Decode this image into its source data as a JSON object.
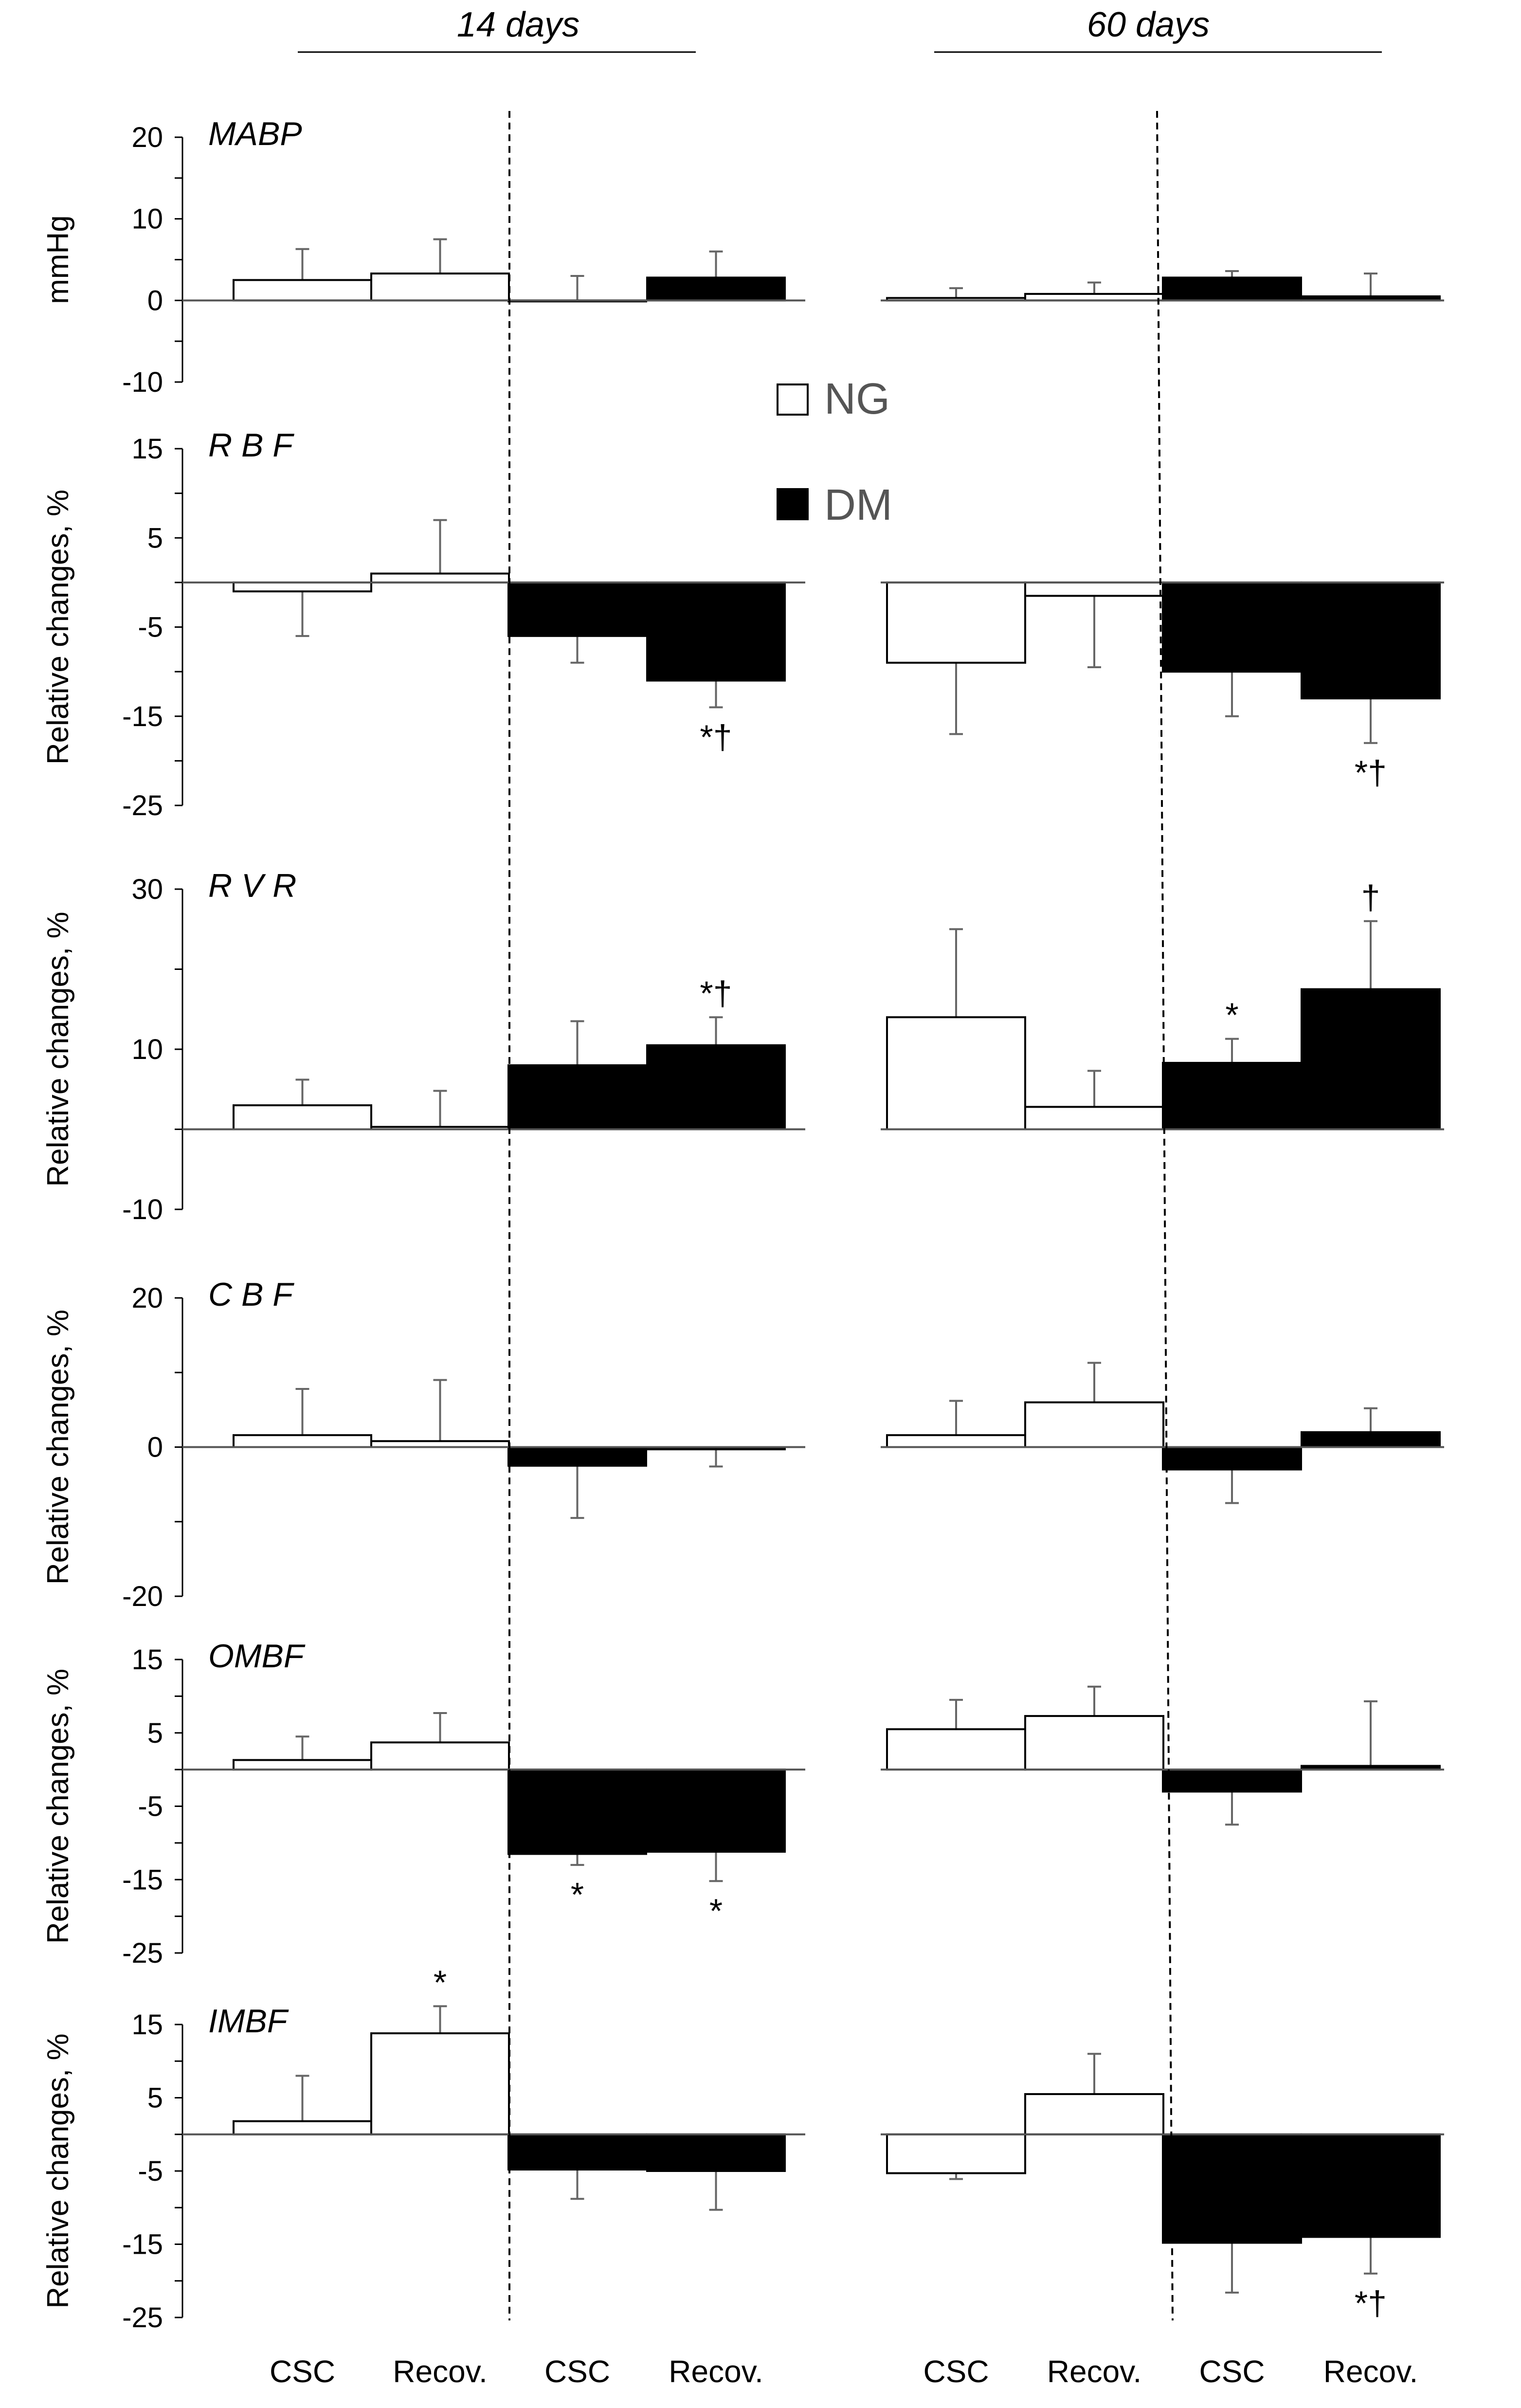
{
  "chart_data": {
    "type": "bar",
    "groups": [
      "14 days",
      "60 days"
    ],
    "categories": [
      "CSC",
      "Recov.",
      "CSC",
      "Recov."
    ],
    "legend": [
      {
        "name": "NG",
        "color": "#ffffff"
      },
      {
        "name": "DM",
        "color": "#000000"
      }
    ],
    "panels": [
      {
        "title": "MABP",
        "ylabel": "mmHg",
        "ylim": [
          -10,
          20
        ],
        "yticks": [
          20,
          10,
          0,
          -10
        ],
        "groups": [
          {
            "NG": [
              2.5,
              3.3
            ],
            "NG_err": [
              3.8,
              4.2
            ],
            "DM": [
              0,
              2.8
            ],
            "DM_err": [
              3.0,
              3.2
            ]
          },
          {
            "NG": [
              0.3,
              0.8
            ],
            "NG_err": [
              1.2,
              1.4
            ],
            "DM": [
              2.8,
              0.5
            ],
            "DM_err": [
              0.8,
              2.8
            ]
          }
        ],
        "annotations": []
      },
      {
        "title": "R B F",
        "ylabel": "Relative changes, %",
        "ylim": [
          -25,
          15
        ],
        "yticks": [
          15,
          5,
          -5,
          -15,
          -25
        ],
        "groups": [
          {
            "NG": [
              -1,
              1
            ],
            "NG_err": [
              5,
              6
            ],
            "DM": [
              -6,
              -11
            ],
            "DM_err": [
              3,
              3
            ]
          },
          {
            "NG": [
              -9,
              -1.5
            ],
            "NG_err": [
              8,
              8
            ],
            "DM": [
              -10,
              -13
            ],
            "DM_err": [
              5,
              5
            ]
          }
        ],
        "annotations": [
          {
            "group": 0,
            "index": 3,
            "text": "*†",
            "position": "below"
          },
          {
            "group": 1,
            "index": 3,
            "text": "*†",
            "position": "below"
          }
        ]
      },
      {
        "title": "R V R",
        "ylabel": "Relative changes, %",
        "ylim": [
          -10,
          30
        ],
        "yticks": [
          30,
          10,
          -10
        ],
        "groups": [
          {
            "NG": [
              3,
              0.3
            ],
            "NG_err": [
              3.2,
              4.5
            ],
            "DM": [
              8,
              10.5
            ],
            "DM_err": [
              5.5,
              3.5
            ]
          },
          {
            "NG": [
              14,
              2.8
            ],
            "NG_err": [
              11,
              4.5
            ],
            "DM": [
              8.3,
              17.5
            ],
            "DM_err": [
              3,
              8.5
            ]
          }
        ],
        "annotations": [
          {
            "group": 0,
            "index": 3,
            "text": "*†",
            "position": "above"
          },
          {
            "group": 1,
            "index": 2,
            "text": "*",
            "position": "above"
          },
          {
            "group": 1,
            "index": 3,
            "text": "†",
            "position": "above"
          }
        ]
      },
      {
        "title": "C B F",
        "ylabel": "Relative changes, %",
        "ylim": [
          -20,
          20
        ],
        "yticks": [
          20,
          0,
          -20
        ],
        "groups": [
          {
            "NG": [
              1.6,
              0.8
            ],
            "NG_err": [
              6.2,
              8.2
            ],
            "DM": [
              -2.5,
              -0.3
            ],
            "DM_err": [
              7,
              2.3
            ]
          },
          {
            "NG": [
              1.6,
              6
            ],
            "NG_err": [
              4.6,
              5.3
            ],
            "DM": [
              -3,
              2
            ],
            "DM_err": [
              4.5,
              3.2
            ]
          }
        ],
        "annotations": []
      },
      {
        "title": "OMBF",
        "ylabel": "Relative changes, %",
        "ylim": [
          -25,
          15
        ],
        "yticks": [
          15,
          5,
          -5,
          -15,
          -25
        ],
        "groups": [
          {
            "NG": [
              1.3,
              3.7
            ],
            "NG_err": [
              3.2,
              4
            ],
            "DM": [
              -11.5,
              -11.2
            ],
            "DM_err": [
              1.5,
              4
            ]
          },
          {
            "NG": [
              5.5,
              7.3
            ],
            "NG_err": [
              4,
              4
            ],
            "DM": [
              -3,
              0.5
            ],
            "DM_err": [
              4.5,
              8.8
            ]
          }
        ],
        "annotations": [
          {
            "group": 0,
            "index": 2,
            "text": "*",
            "position": "below"
          },
          {
            "group": 0,
            "index": 3,
            "text": "*",
            "position": "below"
          }
        ]
      },
      {
        "title": "IMBF",
        "ylabel": "Relative changes, %",
        "ylim": [
          -25,
          15
        ],
        "yticks": [
          15,
          5,
          -5,
          -15,
          -25
        ],
        "groups": [
          {
            "NG": [
              1.8,
              13.8
            ],
            "NG_err": [
              6.2,
              3.7
            ],
            "DM": [
              -4.8,
              -5
            ],
            "DM_err": [
              4,
              5.3
            ]
          },
          {
            "NG": [
              -5.3,
              5.5
            ],
            "NG_err": [
              0.8,
              5.5
            ],
            "DM": [
              -14.8,
              -14
            ],
            "DM_err": [
              6.8,
              5
            ]
          }
        ],
        "annotations": [
          {
            "group": 0,
            "index": 1,
            "text": "*",
            "position": "above"
          },
          {
            "group": 1,
            "index": 3,
            "text": "*†",
            "position": "below"
          }
        ]
      }
    ]
  }
}
